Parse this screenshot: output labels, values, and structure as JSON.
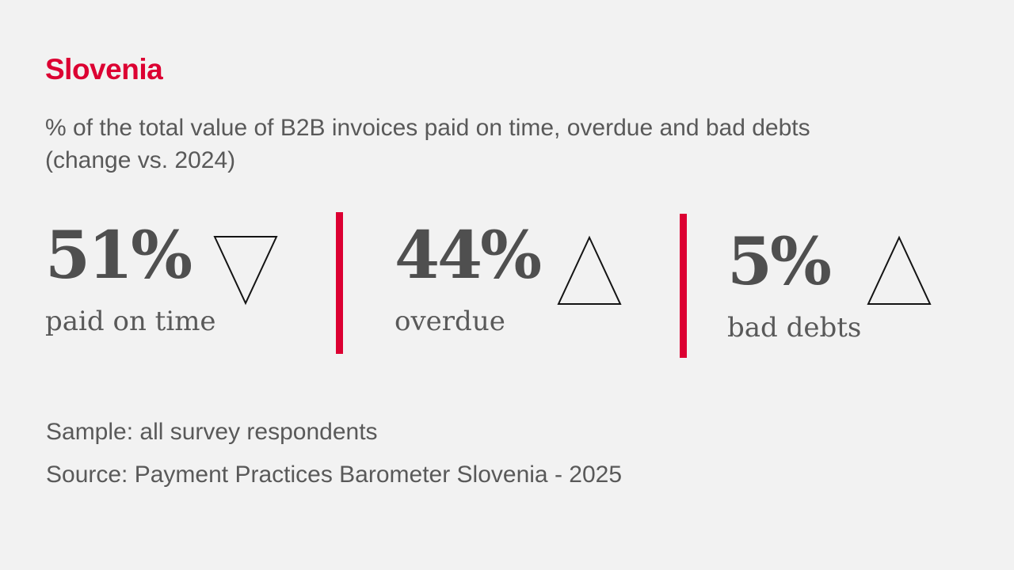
{
  "page": {
    "title": "Slovenia",
    "subtitle_line1": "% of the total value of B2B invoices paid on time, overdue and bad debts",
    "subtitle_line2": "(change vs. 2024)"
  },
  "stats": [
    {
      "value": "51%",
      "label": "paid on time",
      "trend": "down",
      "trend_icon": "triangle-down-icon"
    },
    {
      "value": "44%",
      "label": "overdue",
      "trend": "up",
      "trend_icon": "triangle-up-icon"
    },
    {
      "value": "5%",
      "label": "bad debts",
      "trend": "up",
      "trend_icon": "triangle-up-icon"
    }
  ],
  "footer": {
    "sample": "Sample: all survey respondents",
    "source": "Source: Payment Practices Barometer Slovenia - 2025"
  },
  "colors": {
    "accent_red": "#DC0032",
    "text_gray": "#595959",
    "value_gray": "#4F4F4F",
    "triangle_stroke": "#141414",
    "background": "#F2F2F2"
  },
  "chart_data": {
    "type": "table",
    "title": "Slovenia",
    "subtitle": "% of the total value of B2B invoices paid on time, overdue and bad debts (change vs. 2024)",
    "categories": [
      "paid on time",
      "overdue",
      "bad debts"
    ],
    "values": [
      51,
      44,
      5
    ],
    "unit": "%",
    "change_vs_2024": [
      "down",
      "up",
      "up"
    ],
    "sample": "Sample: all survey respondents",
    "source": "Source: Payment Practices Barometer Slovenia - 2025"
  }
}
